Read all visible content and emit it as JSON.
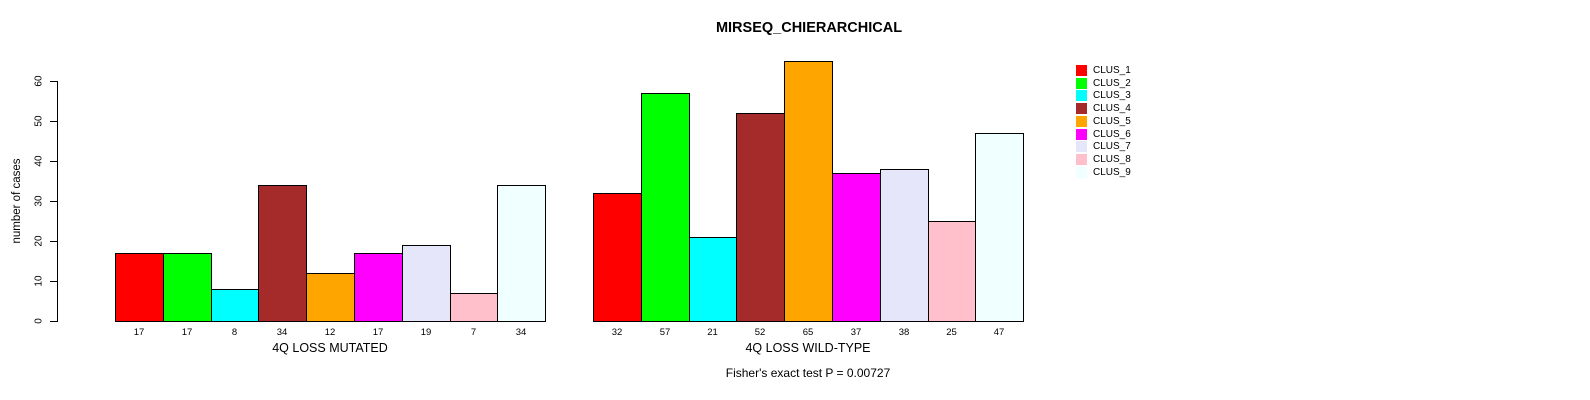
{
  "chart_data": {
    "type": "bar",
    "title": "MIRSEQ_CHIERARCHICAL",
    "ylabel": "number of cases",
    "annotation": "Fisher's exact test P = 0.00727",
    "ylim": [
      0,
      65
    ],
    "yticks": [
      0,
      10,
      20,
      30,
      40,
      50,
      60
    ],
    "grid": false,
    "legend_position": "right",
    "series": [
      {
        "name": "CLUS_1",
        "color": "#FF0000"
      },
      {
        "name": "CLUS_2",
        "color": "#00FF00"
      },
      {
        "name": "CLUS_3",
        "color": "#00FFFF"
      },
      {
        "name": "CLUS_4",
        "color": "#A52A2A"
      },
      {
        "name": "CLUS_5",
        "color": "#FFA500"
      },
      {
        "name": "CLUS_6",
        "color": "#FF00FF"
      },
      {
        "name": "CLUS_7",
        "color": "#E6E6FA"
      },
      {
        "name": "CLUS_8",
        "color": "#FFC0CB"
      },
      {
        "name": "CLUS_9",
        "color": "#F0FFFF"
      }
    ],
    "groups": [
      {
        "label": "4Q LOSS MUTATED",
        "values": [
          17,
          17,
          8,
          34,
          12,
          17,
          19,
          7,
          34
        ]
      },
      {
        "label": "4Q LOSS WILD-TYPE",
        "values": [
          32,
          57,
          21,
          52,
          65,
          37,
          38,
          25,
          47
        ]
      }
    ]
  }
}
